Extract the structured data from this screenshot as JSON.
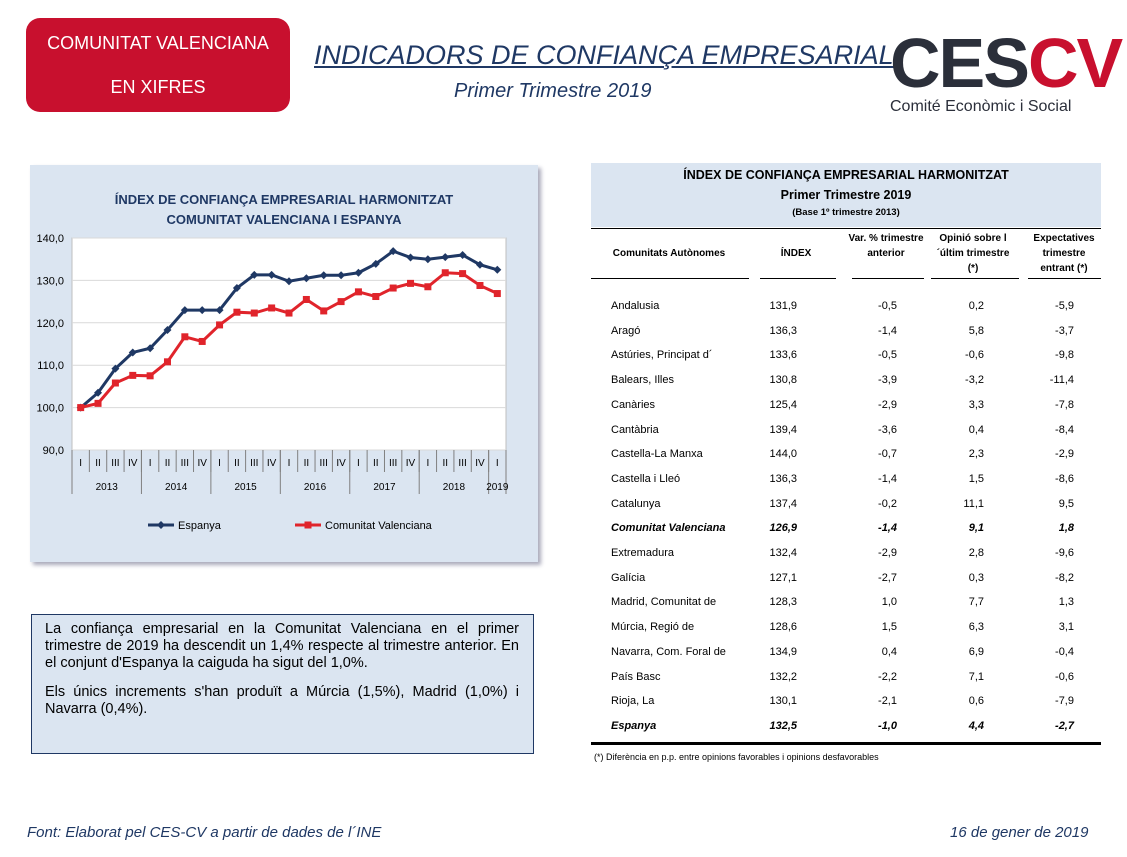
{
  "badge": {
    "line1": "COMUNITAT VALENCIANA",
    "line2": "EN XIFRES"
  },
  "header": {
    "title": "INDICADORS DE CONFIANÇA EMPRESARIAL",
    "subtitle": "Primer Trimestre 2019"
  },
  "logo": {
    "ces": "CES",
    "cv": "CV",
    "tagline": "Comité Econòmic i Social"
  },
  "chart_data": {
    "type": "line",
    "title": "ÍNDEX DE CONFIANÇA EMPRESARIAL HARMONITZAT",
    "subtitle": "COMUNITAT VALENCIANA I ESPANYA",
    "ylim": [
      90,
      140
    ],
    "yticks": [
      "140,0",
      "130,0",
      "120,0",
      "110,0",
      "100,0",
      "90,0"
    ],
    "quarters": [
      "I",
      "II",
      "III",
      "IV",
      "I",
      "II",
      "III",
      "IV",
      "I",
      "II",
      "III",
      "IV",
      "I",
      "II",
      "III",
      "IV",
      "I",
      "II",
      "III",
      "IV",
      "I",
      "II",
      "III",
      "IV",
      "I"
    ],
    "years": [
      "2013",
      "2014",
      "2015",
      "2016",
      "2017",
      "2018",
      "2019"
    ],
    "series": [
      {
        "name": "Espanya",
        "color": "#1f3864",
        "values": [
          100.0,
          103.5,
          109.2,
          113.0,
          114.0,
          118.3,
          123.0,
          123.0,
          123.0,
          128.2,
          131.3,
          131.3,
          129.8,
          130.5,
          131.2,
          131.2,
          131.8,
          133.9,
          136.9,
          135.4,
          135.0,
          135.5,
          136.0,
          133.7,
          132.5
        ]
      },
      {
        "name": "Comunitat Valenciana",
        "color": "#e0242b",
        "values": [
          100.0,
          101.0,
          105.8,
          107.6,
          107.5,
          110.8,
          116.7,
          115.6,
          119.5,
          122.5,
          122.3,
          123.5,
          122.3,
          125.5,
          122.8,
          125.0,
          127.3,
          126.2,
          128.2,
          129.3,
          128.5,
          131.8,
          131.6,
          128.8,
          126.9
        ]
      }
    ]
  },
  "textbox": {
    "p1": "La confiança empresarial en la Comunitat Valenciana en el primer trimestre de 2019 ha descendit un 1,4% respecte al trimestre anterior. En el conjunt d'Espanya la caiguda ha sigut del 1,0%.",
    "p2": "Els únics increments s'han produït a Múrcia (1,5%), Madrid (1,0%) i Navarra (0,4%)."
  },
  "table": {
    "title": "ÍNDEX DE CONFIANÇA EMPRESARIAL HARMONITZAT",
    "subtitle": "Primer Trimestre 2019",
    "base": "(Base 1º trimestre 2013)",
    "columns": [
      "Comunitats Autònomes",
      "ÍNDEX",
      "Var. % trimestre anterior",
      "Opinió sobre l´últim trimestre (*)",
      "Expectatives trimestre entrant (*)"
    ],
    "rows": [
      {
        "name": "Andalusia",
        "index": "131,9",
        "var": "-0,5",
        "op": "0,2",
        "exp": "-5,9"
      },
      {
        "name": "Aragó",
        "index": "136,3",
        "var": "-1,4",
        "op": "5,8",
        "exp": "-3,7"
      },
      {
        "name": "Astúries, Principat d´",
        "index": "133,6",
        "var": "-0,5",
        "op": "-0,6",
        "exp": "-9,8"
      },
      {
        "name": "Balears, Illes",
        "index": "130,8",
        "var": "-3,9",
        "op": "-3,2",
        "exp": "-11,4"
      },
      {
        "name": "Canàries",
        "index": "125,4",
        "var": "-2,9",
        "op": "3,3",
        "exp": "-7,8"
      },
      {
        "name": "Cantàbria",
        "index": "139,4",
        "var": "-3,6",
        "op": "0,4",
        "exp": "-8,4"
      },
      {
        "name": "Castella-La Manxa",
        "index": "144,0",
        "var": "-0,7",
        "op": "2,3",
        "exp": "-2,9"
      },
      {
        "name": "Castella i Lleó",
        "index": "136,3",
        "var": "-1,4",
        "op": "1,5",
        "exp": "-8,6"
      },
      {
        "name": "Catalunya",
        "index": "137,4",
        "var": "-0,2",
        "op": "11,1",
        "exp": "9,5"
      },
      {
        "name": "Comunitat Valenciana",
        "index": "126,9",
        "var": "-1,4",
        "op": "9,1",
        "exp": "1,8",
        "bold": true
      },
      {
        "name": "Extremadura",
        "index": "132,4",
        "var": "-2,9",
        "op": "2,8",
        "exp": "-9,6"
      },
      {
        "name": "Galícia",
        "index": "127,1",
        "var": "-2,7",
        "op": "0,3",
        "exp": "-8,2"
      },
      {
        "name": "Madrid, Comunitat de",
        "index": "128,3",
        "var": "1,0",
        "op": "7,7",
        "exp": "1,3"
      },
      {
        "name": "Múrcia, Regió de",
        "index": "128,6",
        "var": "1,5",
        "op": "6,3",
        "exp": "3,1"
      },
      {
        "name": "Navarra, Com. Foral de",
        "index": "134,9",
        "var": "0,4",
        "op": "6,9",
        "exp": "-0,4"
      },
      {
        "name": "País Basc",
        "index": "132,2",
        "var": "-2,2",
        "op": "7,1",
        "exp": "-0,6"
      },
      {
        "name": "Rioja, La",
        "index": "130,1",
        "var": "-2,1",
        "op": "0,6",
        "exp": "-7,9"
      },
      {
        "name": "Espanya",
        "index": "132,5",
        "var": "-1,0",
        "op": "4,4",
        "exp": "-2,7",
        "bold": true
      }
    ],
    "note": "(*)  Diferència en p.p. entre opinions favorables i opinions desfavorables"
  },
  "footer": {
    "source": "Font: Elaborat pel CES-CV a partir de dades de l´INE",
    "date": "16 de gener de 2019"
  }
}
